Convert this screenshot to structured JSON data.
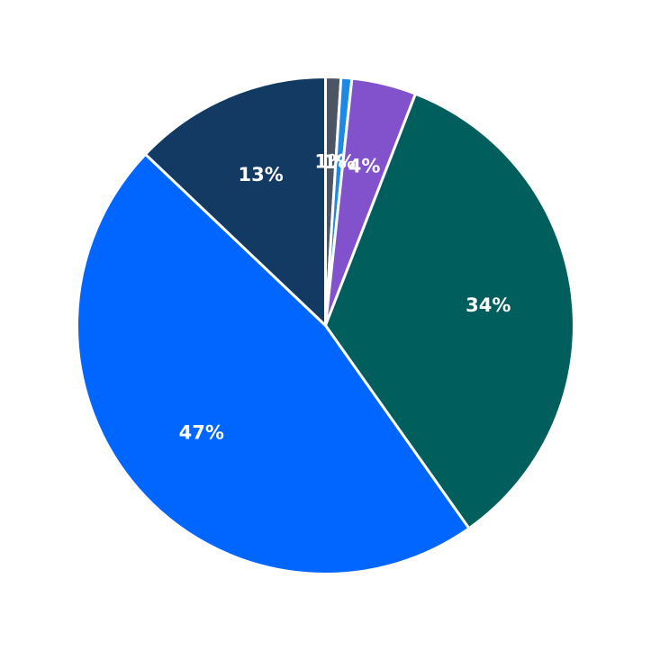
{
  "chart_data": {
    "type": "pie",
    "start_angle_deg": 90,
    "direction": "clockwise",
    "slices": [
      {
        "value": 1.0,
        "label": "1%",
        "color": "#4b5563"
      },
      {
        "value": 0.7,
        "label": "1%",
        "color": "#1e88e5"
      },
      {
        "value": 4.2,
        "label": "4%",
        "color": "#8152cc"
      },
      {
        "value": 34.3,
        "label": "34%",
        "color": "#005f5c"
      },
      {
        "value": 46.9,
        "label": "47%",
        "color": "#0066ff"
      },
      {
        "value": 12.9,
        "label": "13%",
        "color": "#133a63"
      }
    ]
  }
}
